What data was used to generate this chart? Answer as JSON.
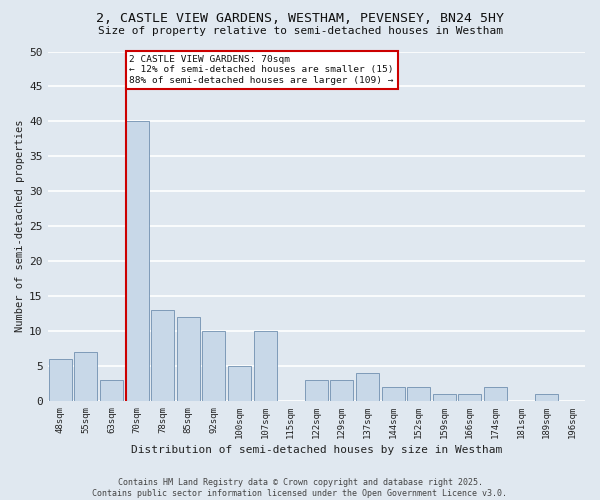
{
  "title_line1": "2, CASTLE VIEW GARDENS, WESTHAM, PEVENSEY, BN24 5HY",
  "title_line2": "Size of property relative to semi-detached houses in Westham",
  "xlabel": "Distribution of semi-detached houses by size in Westham",
  "ylabel": "Number of semi-detached properties",
  "categories": [
    "48sqm",
    "55sqm",
    "63sqm",
    "70sqm",
    "78sqm",
    "85sqm",
    "92sqm",
    "100sqm",
    "107sqm",
    "115sqm",
    "122sqm",
    "129sqm",
    "137sqm",
    "144sqm",
    "152sqm",
    "159sqm",
    "166sqm",
    "174sqm",
    "181sqm",
    "189sqm",
    "196sqm"
  ],
  "values": [
    6,
    7,
    3,
    40,
    13,
    12,
    10,
    5,
    10,
    0,
    3,
    3,
    4,
    2,
    2,
    1,
    1,
    2,
    0,
    1,
    0
  ],
  "bar_color": "#c8d8e8",
  "bar_edge_color": "#7090b0",
  "highlight_index": 3,
  "highlight_line_color": "#cc0000",
  "ylim": [
    0,
    50
  ],
  "yticks": [
    0,
    5,
    10,
    15,
    20,
    25,
    30,
    35,
    40,
    45,
    50
  ],
  "bg_color": "#e0e8f0",
  "grid_color": "#ffffff",
  "annotation_text": "2 CASTLE VIEW GARDENS: 70sqm\n← 12% of semi-detached houses are smaller (15)\n88% of semi-detached houses are larger (109) →",
  "annotation_box_color": "#cc0000",
  "footer_line1": "Contains HM Land Registry data © Crown copyright and database right 2025.",
  "footer_line2": "Contains public sector information licensed under the Open Government Licence v3.0."
}
